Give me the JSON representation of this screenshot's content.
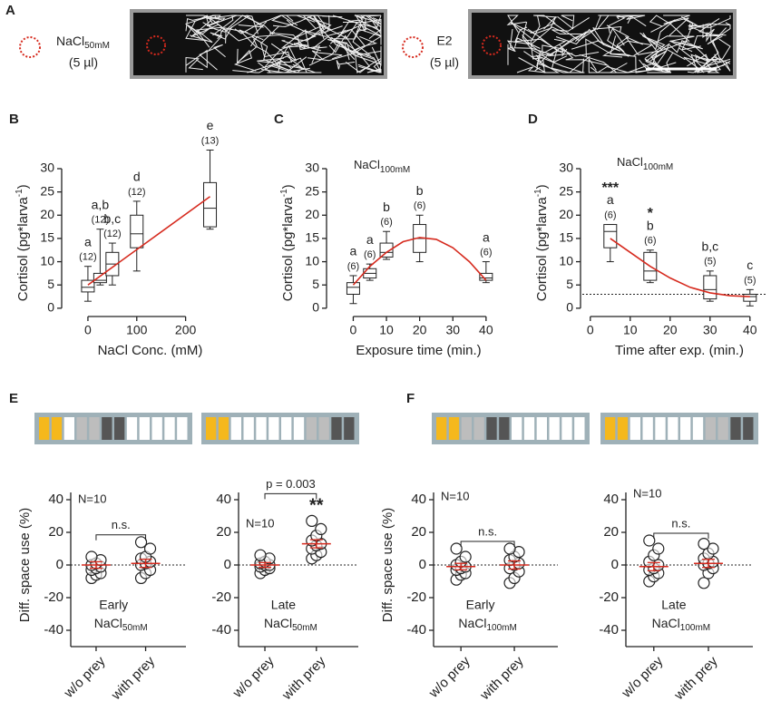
{
  "panel_a": {
    "label": "A",
    "left": {
      "name": "NaCl",
      "sub": "50mM",
      "volume": "(5 µl)"
    },
    "right": {
      "name": "E2",
      "volume": "(5 µl)"
    }
  },
  "chart_data": [
    {
      "type": "box",
      "panel": "B",
      "ylabel": {
        "text": "Cortisol (pg*larva",
        "sup": "-1",
        "tail": ")"
      },
      "xlabel": "NaCl Conc. (mM)",
      "x": [
        0,
        25,
        50,
        100,
        250
      ],
      "min": [
        1.5,
        5,
        5,
        8,
        17
      ],
      "q1": [
        3.5,
        5.5,
        7,
        13,
        17.5
      ],
      "median": [
        4.5,
        6,
        9.5,
        16,
        21.5
      ],
      "q3": [
        6,
        7.5,
        12,
        20,
        27
      ],
      "max": [
        9,
        17,
        14,
        23,
        34
      ],
      "letters": [
        "a",
        "a,b",
        "b,c",
        "d",
        "e"
      ],
      "n_labels": [
        "(12)",
        "(12)",
        "(12)",
        "(12)",
        "(13)"
      ],
      "fit": {
        "x": [
          0,
          250
        ],
        "y": [
          5,
          24
        ]
      },
      "fit_color": "#d62a1e",
      "xlim": [
        -50,
        275
      ],
      "ylim": [
        -1,
        33
      ],
      "xticks": [
        0,
        100,
        200
      ],
      "yticks": [
        0,
        5,
        10,
        15,
        20,
        25,
        30
      ]
    },
    {
      "type": "box",
      "panel": "C",
      "ylabel": {
        "text": "Cortisol (pg*larva",
        "sup": "-1",
        "tail": ")"
      },
      "xlabel": "Exposure time (min.)",
      "annotation": {
        "text": "NaCl",
        "sub": "100mM"
      },
      "x": [
        0,
        5,
        10,
        20,
        40
      ],
      "min": [
        1,
        6,
        10.5,
        10,
        5.5
      ],
      "q1": [
        3,
        6.5,
        11,
        12,
        6
      ],
      "median": [
        4.5,
        7.5,
        12,
        15,
        6.5
      ],
      "q3": [
        5.5,
        8.5,
        14,
        18,
        7.5
      ],
      "max": [
        7,
        9.5,
        16.5,
        20,
        10
      ],
      "letters": [
        "a",
        "a",
        "b",
        "b",
        "a"
      ],
      "n_labels": [
        "(6)",
        "(6)",
        "(6)",
        "(6)",
        "(6)"
      ],
      "fit": {
        "x": [
          0,
          5,
          10,
          15,
          20,
          25,
          30,
          35,
          40
        ],
        "y": [
          5,
          9,
          12,
          14.3,
          15.2,
          14.8,
          13,
          10,
          6
        ]
      },
      "fit_color": "#d62a1e",
      "xlim": [
        -7.5,
        42.5
      ],
      "ylim": [
        -1,
        33
      ],
      "xticks": [
        0,
        10,
        20,
        30,
        40
      ],
      "yticks": [
        0,
        5,
        10,
        15,
        20,
        25,
        30
      ]
    },
    {
      "type": "box",
      "panel": "D",
      "ylabel": {
        "text": "Cortisol (pg*larva",
        "sup": "-1",
        "tail": ")"
      },
      "xlabel": "Time after exp. (min.)",
      "annotation": {
        "text": "NaCl",
        "sub": "100mM"
      },
      "x": [
        5,
        15,
        30,
        40
      ],
      "min": [
        10,
        5.5,
        1.5,
        0.5
      ],
      "q1": [
        13,
        6,
        2,
        1.5
      ],
      "median": [
        16.5,
        8,
        4,
        2.5
      ],
      "q3": [
        18,
        12,
        7,
        3
      ],
      "max": [
        18,
        12.5,
        8,
        4
      ],
      "stars": [
        "***",
        "*",
        null,
        null
      ],
      "letters": [
        "a",
        "b",
        "b,c",
        "c"
      ],
      "n_labels": [
        "(6)",
        "(6)",
        "(5)",
        "(5)"
      ],
      "baseline": 3,
      "fit": {
        "x": [
          5,
          10,
          15,
          20,
          25,
          30,
          35,
          40
        ],
        "y": [
          15,
          12,
          9,
          6.5,
          4.5,
          3.3,
          2.7,
          2.5
        ]
      },
      "fit_color": "#d62a1e",
      "xlim": [
        -2,
        43
      ],
      "ylim": [
        -1,
        33
      ],
      "xticks": [
        0,
        10,
        20,
        30,
        40
      ],
      "yticks": [
        0,
        5,
        10,
        15,
        20,
        25,
        30
      ]
    },
    {
      "type": "dot",
      "panel": "E",
      "ylabel": "Diff. space use (%)",
      "arena": [
        "#f5b81c",
        "#f5b81c",
        "#ffffff",
        "#bdbdbd",
        "#bdbdbd",
        "#555555",
        "#555555",
        "#ffffff",
        "#ffffff",
        "#ffffff",
        "#ffffff",
        "#ffffff"
      ],
      "categories": [
        "w/o prey",
        "with prey"
      ],
      "groups": [
        [
          -8,
          -6,
          -5,
          -3,
          -2,
          -1,
          0,
          1,
          3,
          5
        ],
        [
          -8,
          -5,
          -3,
          0,
          1,
          2,
          4,
          5,
          10,
          14
        ]
      ],
      "means": [
        0,
        1
      ],
      "sem": [
        2,
        2.5
      ],
      "mean_color": "#d62a1e",
      "n_label": "N=10",
      "condition": {
        "text": "Early",
        "name": "NaCl",
        "sub": "50mM"
      },
      "significance": "n.s.",
      "stars": [
        null,
        null
      ],
      "ylim": [
        -50,
        50
      ],
      "yticks": [
        -40,
        -20,
        0,
        20,
        40
      ]
    },
    {
      "type": "dot",
      "arena": [
        "#f5b81c",
        "#f5b81c",
        "#ffffff",
        "#ffffff",
        "#ffffff",
        "#ffffff",
        "#ffffff",
        "#ffffff",
        "#bdbdbd",
        "#bdbdbd",
        "#555555",
        "#555555"
      ],
      "categories": [
        "w/o prey",
        "with prey"
      ],
      "groups": [
        [
          -5,
          -3,
          -2,
          -1,
          0,
          0,
          1,
          2,
          4,
          6
        ],
        [
          4,
          6,
          8,
          10,
          12,
          13,
          15,
          18,
          22,
          27
        ]
      ],
      "means": [
        0,
        13
      ],
      "sem": [
        1.5,
        2.5
      ],
      "mean_color": "#d62a1e",
      "n_label": "N=10",
      "condition": {
        "text": "Late",
        "name": "NaCl",
        "sub": "50mM"
      },
      "significance": "p = 0.003",
      "stars": [
        null,
        "**"
      ],
      "ylim": [
        -50,
        50
      ],
      "yticks": [
        -40,
        -20,
        0,
        20,
        40
      ]
    },
    {
      "type": "dot",
      "panel": "F",
      "ylabel": "Diff. space use (%)",
      "arena": [
        "#f5b81c",
        "#f5b81c",
        "#bdbdbd",
        "#bdbdbd",
        "#555555",
        "#555555",
        "#ffffff",
        "#ffffff",
        "#ffffff",
        "#ffffff",
        "#ffffff",
        "#ffffff"
      ],
      "categories": [
        "w/o prey",
        "with prey"
      ],
      "groups": [
        [
          -9,
          -6,
          -5,
          -3,
          -2,
          -1,
          0,
          2,
          5,
          10
        ],
        [
          -11,
          -8,
          -4,
          -2,
          0,
          1,
          3,
          5,
          8,
          10
        ]
      ],
      "means": [
        -1,
        0
      ],
      "sem": [
        2,
        2.5
      ],
      "mean_color": "#d62a1e",
      "n_label": "N=10",
      "condition": {
        "text": "Early",
        "name": "NaCl",
        "sub": "100mM"
      },
      "significance": "n.s.",
      "stars": [
        null,
        null
      ],
      "ylim": [
        -50,
        50
      ],
      "yticks": [
        -40,
        -20,
        0,
        20,
        40
      ]
    },
    {
      "type": "dot",
      "arena": [
        "#f5b81c",
        "#f5b81c",
        "#ffffff",
        "#ffffff",
        "#ffffff",
        "#ffffff",
        "#ffffff",
        "#ffffff",
        "#bdbdbd",
        "#bdbdbd",
        "#555555",
        "#555555"
      ],
      "categories": [
        "w/o prey",
        "with prey"
      ],
      "groups": [
        [
          -10,
          -7,
          -5,
          -3,
          -2,
          0,
          2,
          6,
          10,
          15
        ],
        [
          -11,
          -5,
          -2,
          0,
          1,
          2,
          4,
          7,
          10,
          13
        ]
      ],
      "means": [
        -1,
        1
      ],
      "sem": [
        2.5,
        2.5
      ],
      "mean_color": "#d62a1e",
      "n_label": "N=10",
      "condition": {
        "text": "Late",
        "name": "NaCl",
        "sub": "100mM"
      },
      "significance": "n.s.",
      "stars": [
        null,
        null
      ],
      "ylim": [
        -50,
        50
      ],
      "yticks": [
        -40,
        -20,
        0,
        20,
        40
      ]
    }
  ]
}
